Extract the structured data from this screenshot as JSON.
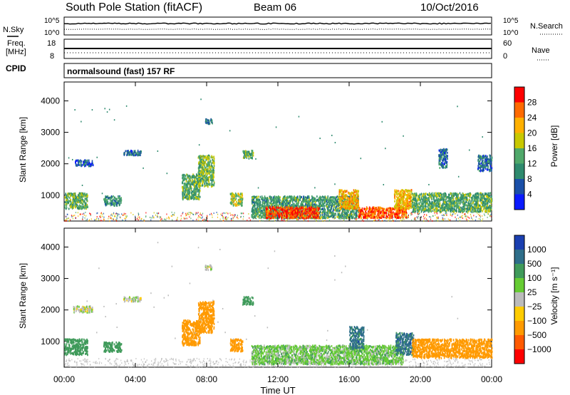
{
  "header": {
    "station": "South Pole Station (fitACF)",
    "beam": "Beam 06",
    "date": "10/Oct/2016"
  },
  "noise_panel": {
    "left_label": "N.Sky",
    "right_label": "N.Search",
    "left_ticks": [
      "10^5",
      "10^0"
    ],
    "right_ticks": [
      "10^5",
      "10^0"
    ]
  },
  "freq_panel": {
    "left_label_line1": "Freq.",
    "left_label_line2": "[MHz]",
    "right_label": "Nave",
    "left_ticks": [
      "18",
      "8"
    ],
    "right_ticks": [
      "60",
      "0"
    ]
  },
  "cpid": {
    "label": "CPID",
    "value": "normalsound (fast) 157 RF"
  },
  "chart_data": [
    {
      "type": "heatmap",
      "name": "power",
      "ylabel": "Slant Range [km]",
      "yticks": [
        "4000",
        "3000",
        "2000",
        "1000"
      ],
      "ylim": [
        180,
        4600
      ],
      "colorbar_label": "Power [dB]",
      "colorbar_ticks": [
        "28",
        "24",
        "20",
        "16",
        "12",
        "8",
        "4"
      ],
      "colorbar_colors": [
        "#ff0000",
        "#ff6a00",
        "#ffb000",
        "#c8c800",
        "#4fa86a",
        "#2e8a6e",
        "#1a4fa8",
        "#0a1aff"
      ],
      "regions": [
        {
          "t0": 0.0,
          "t1": 1.3,
          "r0": 600,
          "r1": 1100,
          "level": 14
        },
        {
          "t0": 0.6,
          "t1": 1.6,
          "r0": 1950,
          "r1": 2150,
          "level": 6
        },
        {
          "t0": 2.2,
          "t1": 3.2,
          "r0": 700,
          "r1": 1000,
          "level": 11
        },
        {
          "t0": 3.3,
          "t1": 4.3,
          "r0": 2300,
          "r1": 2450,
          "level": 7
        },
        {
          "t0": 6.6,
          "t1": 7.6,
          "r0": 900,
          "r1": 1700,
          "level": 13
        },
        {
          "t0": 7.5,
          "t1": 8.4,
          "r0": 1300,
          "r1": 2300,
          "level": 15
        },
        {
          "t0": 7.9,
          "t1": 8.3,
          "r0": 3300,
          "r1": 3450,
          "level": 9
        },
        {
          "t0": 9.3,
          "t1": 10.0,
          "r0": 700,
          "r1": 1100,
          "level": 17
        },
        {
          "t0": 10.0,
          "t1": 10.6,
          "r0": 2200,
          "r1": 2450,
          "level": 13
        },
        {
          "t0": 10.5,
          "t1": 16.5,
          "r0": 300,
          "r1": 1000,
          "level": 12
        },
        {
          "t0": 11.3,
          "t1": 14.3,
          "r0": 300,
          "r1": 650,
          "level": 28
        },
        {
          "t0": 15.4,
          "t1": 16.5,
          "r0": 600,
          "r1": 1200,
          "level": 22
        },
        {
          "t0": 16.5,
          "t1": 19.2,
          "r0": 300,
          "r1": 650,
          "level": 27
        },
        {
          "t0": 18.5,
          "t1": 19.5,
          "r0": 600,
          "r1": 1200,
          "level": 21
        },
        {
          "t0": 19.5,
          "t1": 24.0,
          "r0": 500,
          "r1": 1100,
          "level": 13
        },
        {
          "t0": 21.0,
          "t1": 21.5,
          "r0": 1900,
          "r1": 2500,
          "level": 8
        },
        {
          "t0": 23.2,
          "t1": 24.0,
          "r0": 1800,
          "r1": 2300,
          "level": 8
        }
      ]
    },
    {
      "type": "heatmap",
      "name": "velocity",
      "ylabel": "Slant Range [km]",
      "yticks": [
        "4000",
        "3000",
        "2000",
        "1000"
      ],
      "ylim": [
        180,
        4600
      ],
      "colorbar_label": "Velocity [m s⁻¹]",
      "colorbar_ticks": [
        "1000",
        "500",
        "100",
        "25",
        "−25",
        "−100",
        "−500",
        "−1000"
      ],
      "colorbar_colors": [
        "#1a3fb0",
        "#2e6e8a",
        "#3f9a5a",
        "#66cc33",
        "#bbbbbb",
        "#ffcc00",
        "#ff9a00",
        "#ff5a00",
        "#ff0000"
      ],
      "regions": [
        {
          "t0": 0.0,
          "t1": 1.3,
          "r0": 600,
          "r1": 1100,
          "level": 300
        },
        {
          "t0": 0.5,
          "t1": 1.6,
          "r0": 1950,
          "r1": 2150,
          "level": 0
        },
        {
          "t0": 2.2,
          "t1": 3.2,
          "r0": 700,
          "r1": 1000,
          "level": 300
        },
        {
          "t0": 3.3,
          "t1": 4.3,
          "r0": 2300,
          "r1": 2450,
          "level": 0
        },
        {
          "t0": 6.6,
          "t1": 7.6,
          "r0": 900,
          "r1": 1700,
          "level": -200
        },
        {
          "t0": 7.5,
          "t1": 8.4,
          "r0": 1300,
          "r1": 2300,
          "level": -300
        },
        {
          "t0": 7.9,
          "t1": 8.3,
          "r0": 3300,
          "r1": 3450,
          "level": 0
        },
        {
          "t0": 9.3,
          "t1": 10.0,
          "r0": 700,
          "r1": 1100,
          "level": -300
        },
        {
          "t0": 10.0,
          "t1": 10.6,
          "r0": 2200,
          "r1": 2450,
          "level": 300
        },
        {
          "t0": 10.5,
          "t1": 16.5,
          "r0": 300,
          "r1": 900,
          "level": 60
        },
        {
          "t0": 16.5,
          "t1": 19.0,
          "r0": 300,
          "r1": 900,
          "level": 60
        },
        {
          "t0": 16.0,
          "t1": 16.8,
          "r0": 800,
          "r1": 1500,
          "level": 700
        },
        {
          "t0": 18.6,
          "t1": 19.6,
          "r0": 600,
          "r1": 1300,
          "level": 700
        },
        {
          "t0": 19.5,
          "t1": 24.0,
          "r0": 500,
          "r1": 1100,
          "level": -300
        }
      ]
    }
  ],
  "x_axis": {
    "ticks": [
      "00:00",
      "04:00",
      "08:00",
      "12:00",
      "16:00",
      "20:00",
      "00:00"
    ],
    "label": "Time UT"
  }
}
